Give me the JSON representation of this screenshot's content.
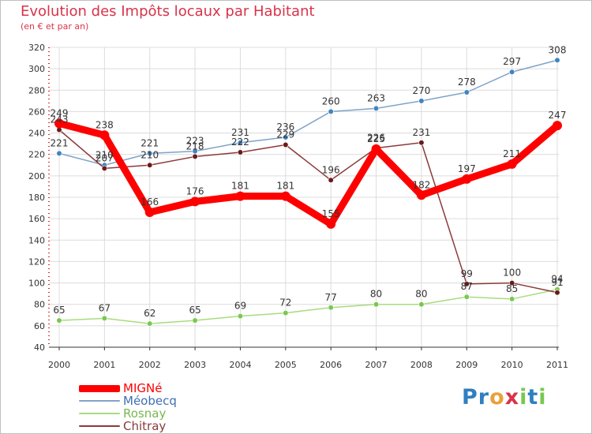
{
  "chart_data": {
    "type": "line",
    "title": "Evolution des Impôts locaux par Habitant",
    "subtitle": "(en € et par an)",
    "xlabel": "",
    "ylabel": "",
    "ylim": [
      40,
      320
    ],
    "yticks": [
      40,
      60,
      80,
      100,
      120,
      140,
      160,
      180,
      200,
      220,
      240,
      260,
      280,
      300,
      320
    ],
    "categories": [
      "2000",
      "2001",
      "2002",
      "2003",
      "2004",
      "2005",
      "2006",
      "2007",
      "2008",
      "2009",
      "2010",
      "2011"
    ],
    "grid": true,
    "legend_position": "bottom-left",
    "series": [
      {
        "name": "Méobecq",
        "color": "#7fa3c8",
        "marker": "#3f85c1",
        "label_color": "#333333",
        "values": [
          221,
          210,
          221,
          223,
          231,
          236,
          260,
          263,
          270,
          278,
          297,
          308
        ]
      },
      {
        "name": "Rosnay",
        "color": "#a8dc7e",
        "marker": "#78c850",
        "label_color": "#333333",
        "values": [
          65,
          67,
          62,
          65,
          69,
          72,
          77,
          80,
          80,
          87,
          85,
          94
        ]
      },
      {
        "name": "Chitray",
        "color": "#8b3a3a",
        "marker": "#6b1a1a",
        "label_color": "#333333",
        "values": [
          243,
          207,
          210,
          218,
          222,
          229,
          196,
          226,
          231,
          99,
          100,
          91
        ]
      },
      {
        "name": "MIGNé",
        "color": "#ff0000",
        "marker": "#ff0000",
        "label_color": "#333333",
        "values": [
          249,
          238,
          166,
          176,
          181,
          181,
          155,
          225,
          182,
          197,
          211,
          247
        ]
      }
    ]
  },
  "legend": {
    "items": [
      {
        "label": "MIGNé",
        "color": "#ff0000"
      },
      {
        "label": "Méobecq",
        "color": "#7fa3c8"
      },
      {
        "label": "Rosnay",
        "color": "#a8dc7e"
      },
      {
        "label": "Chitray",
        "color": "#8b3a3a"
      }
    ]
  },
  "logo": {
    "text": "Proxiti",
    "colors": [
      "#2f7fc1",
      "#2f7fc1",
      "#e8a23a",
      "#d9334a",
      "#78c850",
      "#2f7fc1",
      "#78c850"
    ]
  }
}
